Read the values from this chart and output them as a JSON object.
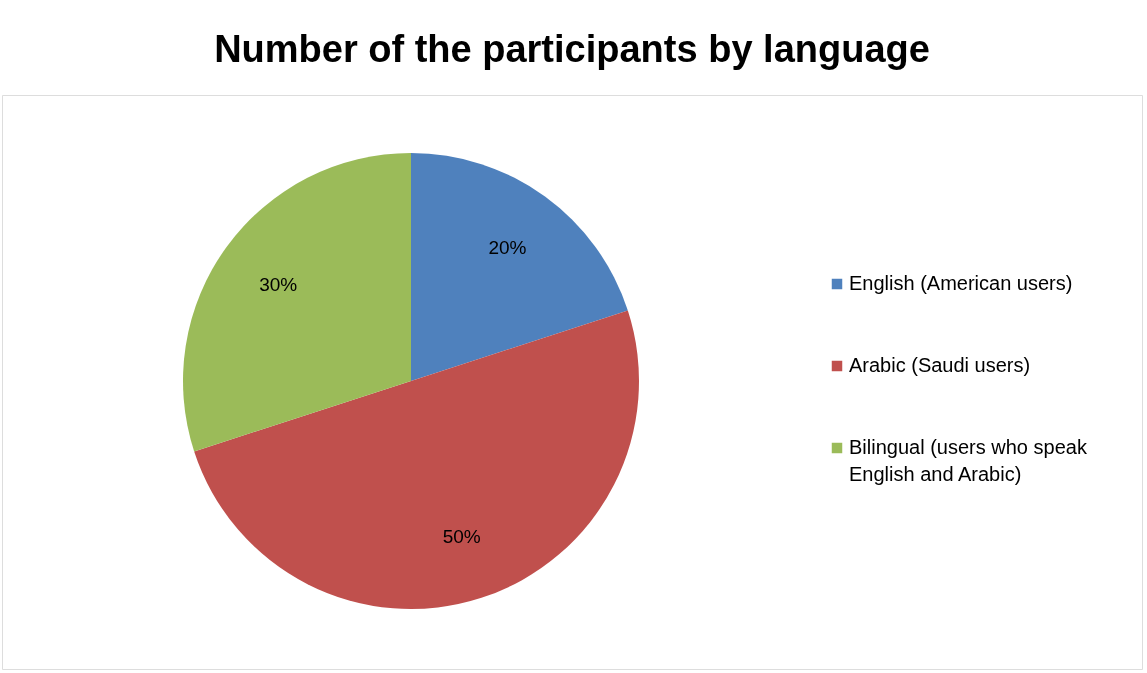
{
  "chart_data": {
    "type": "pie",
    "title": "Number of the participants by language",
    "categories": [
      "English (American users)",
      "Arabic (Saudi users)",
      "Bilingual (users who speak English and Arabic)"
    ],
    "values": [
      20,
      50,
      30
    ],
    "colors": [
      "#4f81bd",
      "#c0504d",
      "#9bbb59"
    ],
    "value_labels": [
      "20%",
      "50%",
      "30%"
    ],
    "legend": "right"
  }
}
